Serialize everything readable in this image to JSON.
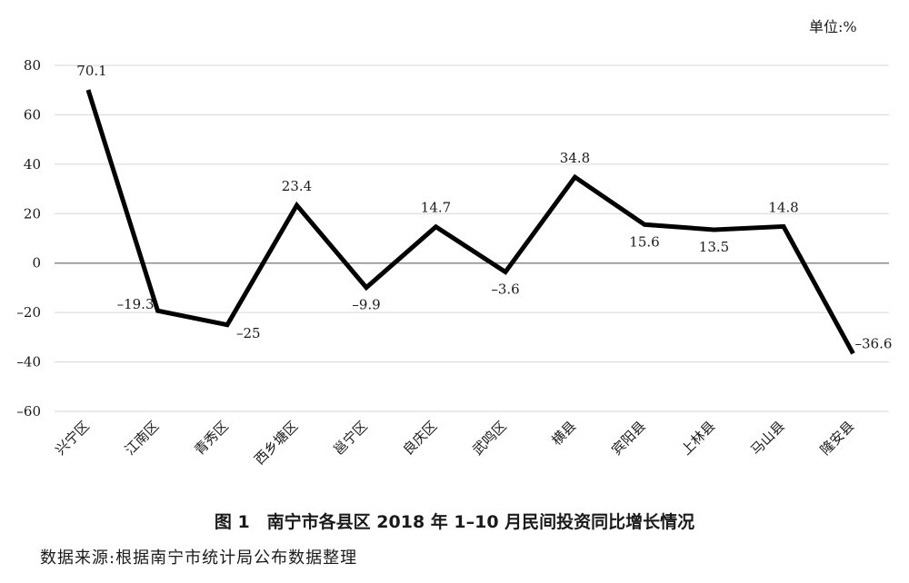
{
  "unit_label": "单位:%",
  "caption": "图 1　南宁市各县区 2018 年 1–10 月民间投资同比增长情况",
  "source": "数据来源:根据南宁市统计局公布数据整理",
  "chart_data": {
    "type": "line",
    "title": "图 1　南宁市各县区 2018 年 1–10 月民间投资同比增长情况",
    "xlabel": "",
    "ylabel": "",
    "unit": "单位:%",
    "categories": [
      "兴宁区",
      "江南区",
      "青秀区",
      "西乡塘区",
      "邕宁区",
      "良庆区",
      "武鸣区",
      "横县",
      "宾阳县",
      "上林县",
      "马山县",
      "隆安县"
    ],
    "values": [
      70.1,
      -19.3,
      -25,
      23.4,
      -9.9,
      14.7,
      -3.6,
      34.8,
      15.6,
      13.5,
      14.8,
      -36.6
    ],
    "data_labels": [
      "70.1",
      "–19.3",
      "–25",
      "23.4",
      "–9.9",
      "14.7",
      "–3.6",
      "34.8",
      "15.6",
      "13.5",
      "14.8",
      "–36.6"
    ],
    "ylim": [
      -60,
      80
    ],
    "yticks": [
      80,
      60,
      40,
      20,
      0,
      -20,
      -40,
      -60
    ],
    "ytick_labels": [
      "80",
      "60",
      "40",
      "20",
      "0",
      "–20",
      "–40",
      "–60"
    ],
    "grid": true,
    "legend": "none",
    "colors": {
      "line": "#000000",
      "grid": "#d6d6d6",
      "zero": "#8a8a8a"
    }
  }
}
